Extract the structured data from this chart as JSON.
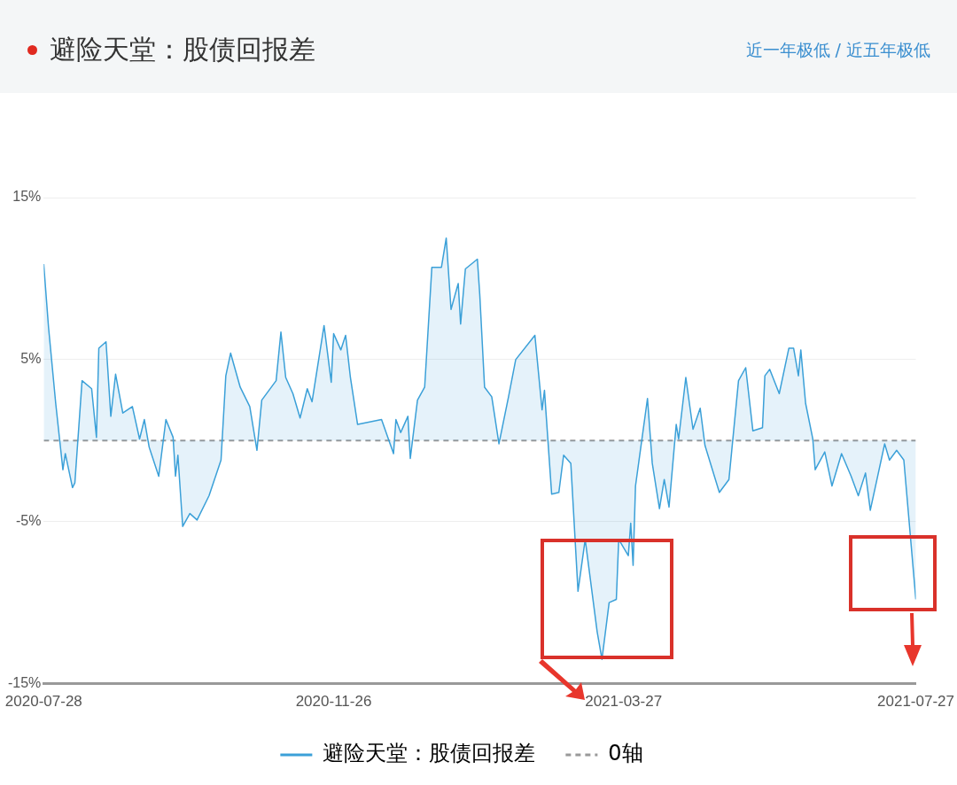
{
  "chart_data": {
    "type": "area",
    "title": "避险天堂：股债回报差",
    "annotations": [
      "近一年极低 / 近五年极低"
    ],
    "x": [
      "2020-07-28",
      "2020-07-30",
      "2020-08-02",
      "2020-08-05",
      "2020-08-06",
      "2020-08-09",
      "2020-08-10",
      "2020-08-13",
      "2020-08-17",
      "2020-08-19",
      "2020-08-20",
      "2020-08-23",
      "2020-08-25",
      "2020-08-27",
      "2020-08-30",
      "2020-09-03",
      "2020-09-06",
      "2020-09-08",
      "2020-09-10",
      "2020-09-14",
      "2020-09-17",
      "2020-09-20",
      "2020-09-21",
      "2020-09-22",
      "2020-09-24",
      "2020-09-27",
      "2020-09-30",
      "2020-10-05",
      "2020-10-10",
      "2020-10-12",
      "2020-10-14",
      "2020-10-18",
      "2020-10-22",
      "2020-10-25",
      "2020-10-27",
      "2020-11-02",
      "2020-11-04",
      "2020-11-06",
      "2020-11-09",
      "2020-11-12",
      "2020-11-15",
      "2020-11-17",
      "2020-11-22",
      "2020-11-25",
      "2020-11-26",
      "2020-11-29",
      "2020-12-01",
      "2020-12-03",
      "2020-12-06",
      "2020-12-16",
      "2020-12-21",
      "2020-12-22",
      "2020-12-24",
      "2020-12-27",
      "2020-12-28",
      "2020-12-31",
      "2021-01-03",
      "2021-01-06",
      "2021-01-10",
      "2021-01-12",
      "2021-01-14",
      "2021-01-17",
      "2021-01-18",
      "2021-01-20",
      "2021-01-25",
      "2021-01-26",
      "2021-01-28",
      "2021-01-31",
      "2021-02-03",
      "2021-02-07",
      "2021-02-10",
      "2021-02-18",
      "2021-02-21",
      "2021-02-22",
      "2021-02-25",
      "2021-02-28",
      "2021-03-02",
      "2021-03-05",
      "2021-03-08",
      "2021-03-11",
      "2021-03-16",
      "2021-03-18",
      "2021-03-21",
      "2021-03-24",
      "2021-03-25",
      "2021-03-29",
      "2021-03-30",
      "2021-03-31",
      "2021-04-01",
      "2021-04-06",
      "2021-04-08",
      "2021-04-11",
      "2021-04-13",
      "2021-04-15",
      "2021-04-18",
      "2021-04-19",
      "2021-04-22",
      "2021-04-25",
      "2021-04-28",
      "2021-04-30",
      "2021-05-06",
      "2021-05-10",
      "2021-05-14",
      "2021-05-17",
      "2021-05-20",
      "2021-05-24",
      "2021-05-25",
      "2021-05-27",
      "2021-05-31",
      "2021-06-04",
      "2021-06-06",
      "2021-06-08",
      "2021-06-09",
      "2021-06-11",
      "2021-06-14",
      "2021-06-15",
      "2021-06-19",
      "2021-06-22",
      "2021-06-26",
      "2021-06-30",
      "2021-07-03",
      "2021-07-06",
      "2021-07-08",
      "2021-07-14",
      "2021-07-16",
      "2021-07-19",
      "2021-07-22",
      "2021-07-27"
    ],
    "series": [
      {
        "name": "避险天堂：股债回报差",
        "color": "#3ba0d8",
        "values": [
          10.9,
          7.0,
          2.3,
          -1.8,
          -0.8,
          -2.9,
          -2.6,
          3.7,
          3.2,
          0.2,
          5.7,
          6.1,
          1.5,
          4.1,
          1.7,
          2.1,
          0.1,
          1.3,
          -0.4,
          -2.2,
          1.3,
          0.2,
          -2.2,
          -0.9,
          -5.3,
          -4.5,
          -4.9,
          -3.4,
          -1.2,
          4.0,
          5.4,
          3.3,
          2.1,
          -0.6,
          2.5,
          3.7,
          6.7,
          3.9,
          2.9,
          1.4,
          3.2,
          2.4,
          7.1,
          3.6,
          6.6,
          5.6,
          6.5,
          3.9,
          1.0,
          1.3,
          -0.8,
          1.3,
          0.5,
          1.5,
          -1.1,
          2.5,
          3.3,
          10.7,
          10.7,
          12.5,
          8.1,
          9.7,
          7.2,
          10.6,
          11.2,
          9.0,
          3.3,
          2.7,
          -0.2,
          2.7,
          5.0,
          6.5,
          1.9,
          3.1,
          -3.3,
          -3.2,
          -0.9,
          -1.4,
          -9.3,
          -6.1,
          -11.8,
          -13.5,
          -10.0,
          -9.8,
          -6.1,
          -7.1,
          -5.1,
          -7.7,
          -2.8,
          2.6,
          -1.4,
          -4.2,
          -2.4,
          -4.1,
          1.0,
          0.1,
          3.9,
          0.7,
          2.0,
          -0.3,
          -3.2,
          -2.4,
          3.7,
          4.5,
          0.6,
          0.8,
          4.0,
          4.4,
          2.9,
          5.7,
          5.7,
          4.0,
          5.6,
          2.3,
          0.1,
          -1.8,
          -0.7,
          -2.8,
          -0.8,
          -2.2,
          -3.4,
          -2.0,
          -4.3,
          -0.2,
          -1.2,
          -0.6,
          -1.2,
          -9.8
        ]
      }
    ],
    "ref_lines": [
      {
        "axis": "y",
        "value": 0,
        "label": "0轴",
        "color": "#999999",
        "line_style": "dashed"
      }
    ],
    "xlim": [
      "2020-07-28",
      "2021-07-27"
    ],
    "xticks": [
      "2020-07-28",
      "2020-11-26",
      "2021-03-27",
      "2021-07-27"
    ],
    "ylim": [
      -15,
      15
    ],
    "yticks": [
      {
        "value": -15,
        "label": "-15%"
      },
      {
        "value": -5,
        "label": "-5%"
      },
      {
        "value": 5,
        "label": "5%"
      },
      {
        "value": 15,
        "label": "15%"
      }
    ],
    "grid": "y",
    "legend": "bottom",
    "marker": "none",
    "line_style": "solid"
  }
}
